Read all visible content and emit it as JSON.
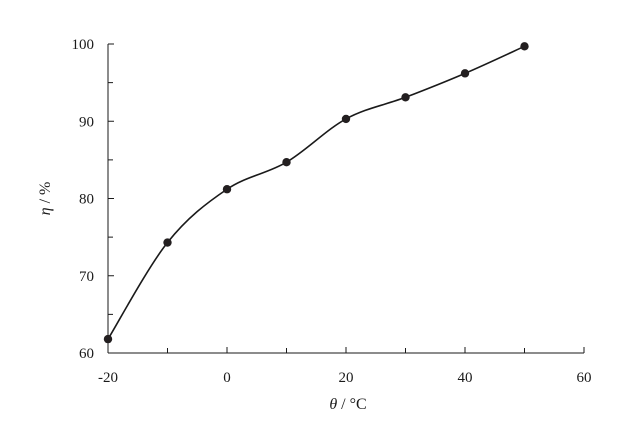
{
  "chart_data": {
    "type": "line",
    "x": [
      -20,
      -10,
      0,
      10,
      20,
      30,
      40,
      50
    ],
    "series": [
      {
        "values": [
          61.8,
          74.3,
          81.2,
          84.7,
          90.3,
          93.1,
          96.2,
          99.7
        ]
      }
    ],
    "xlabel": {
      "symbol": "θ",
      "unit": " / °C"
    },
    "ylabel": {
      "symbol": "η",
      "unit": " / %"
    },
    "xlim": [
      -20,
      60
    ],
    "ylim": [
      60,
      100
    ],
    "xticks": [
      "-20",
      "0",
      "20",
      "40",
      "60"
    ],
    "yticks": [
      "60",
      "70",
      "80",
      "90",
      "100"
    ],
    "grid": false,
    "legend": "none",
    "line_color": "#1a1a1a",
    "marker_color": "#231f20",
    "smooth": true
  }
}
